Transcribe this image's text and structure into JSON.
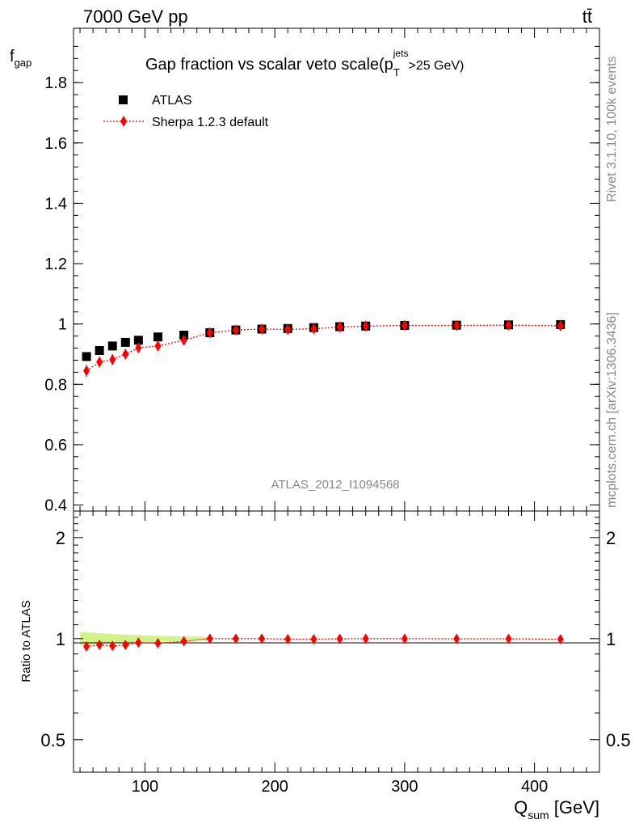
{
  "header": {
    "left_label": "7000 GeV pp",
    "right_label": "tt̄"
  },
  "side_labels": {
    "rivet": "Rivet 3.1.10,  100k events",
    "mcplots": "mcplots.cern.ch [arXiv:1306.3436]"
  },
  "chart_data": [
    {
      "type": "scatter",
      "title": "Gap fraction vs scalar veto scale",
      "title_suffix": {
        "p": "(p",
        "sup": "jets",
        "sub": "T",
        "rest": ">25 GeV)"
      },
      "ylabel": {
        "main": "f",
        "sub": "gap"
      },
      "xlim": [
        45,
        450
      ],
      "ylim": [
        0.38,
        1.98
      ],
      "yticks": [
        0.4,
        0.6,
        0.8,
        1,
        1.2,
        1.4,
        1.6,
        1.8
      ],
      "ytick_labels": [
        "0.4",
        "0.6",
        "0.8",
        "1",
        "1.2",
        "1.4",
        "1.6",
        "1.8"
      ],
      "watermark": "ATLAS_2012_I1094568",
      "legend_position": "top-left",
      "series": [
        {
          "name": "ATLAS",
          "color": "#000000",
          "marker": "square",
          "x": [
            55,
            65,
            75,
            85,
            95,
            110,
            130,
            150,
            170,
            190,
            210,
            230,
            250,
            270,
            300,
            340,
            380,
            420
          ],
          "y": [
            0.892,
            0.912,
            0.927,
            0.939,
            0.946,
            0.957,
            0.963,
            0.971,
            0.98,
            0.983,
            0.985,
            0.988,
            0.991,
            0.993,
            0.995,
            0.996,
            0.997,
            0.998
          ]
        },
        {
          "name": "Sherpa 1.2.3 default",
          "color": "#ff0000",
          "marker": "diamond",
          "x": [
            55,
            65,
            75,
            85,
            95,
            110,
            130,
            150,
            170,
            190,
            210,
            230,
            250,
            270,
            300,
            340,
            380,
            420
          ],
          "y": [
            0.845,
            0.874,
            0.882,
            0.9,
            0.921,
            0.927,
            0.946,
            0.971,
            0.98,
            0.983,
            0.982,
            0.984,
            0.99,
            0.993,
            0.995,
            0.995,
            0.996,
            0.994
          ],
          "yerr": [
            0.02,
            0.018,
            0.018,
            0.017,
            0.016,
            0.015,
            0.012,
            0.008,
            0.007,
            0.006,
            0.006,
            0.006,
            0.005,
            0.005,
            0.004,
            0.004,
            0.004,
            0.004
          ]
        }
      ]
    },
    {
      "type": "scatter",
      "ylabel": "Ratio to ATLAS",
      "xlabel": {
        "main": "Q",
        "sub": "sum",
        "rest": " [GeV]"
      },
      "xlim": [
        45,
        450
      ],
      "xticks": [
        100,
        200,
        300,
        400
      ],
      "xtick_labels": [
        "100",
        "200",
        "300",
        "400"
      ],
      "ylim": [
        0.4,
        2.4
      ],
      "yscale": "log",
      "yticks": [
        0.5,
        1,
        2
      ],
      "ytick_labels": [
        "0.5",
        "1",
        "2"
      ],
      "band": {
        "x_from": 50,
        "x_to": 150,
        "lower": [
          0.955,
          0.962,
          0.968,
          0.972,
          0.976,
          0.98,
          0.985,
          0.988
        ],
        "upper": [
          1.045,
          1.038,
          1.032,
          1.028,
          1.024,
          1.02,
          1.015,
          1.012
        ],
        "color": "#ccf27a"
      },
      "series": [
        {
          "name": "Sherpa 1.2.3 default",
          "color": "#ff0000",
          "marker": "diamond",
          "x": [
            55,
            65,
            75,
            85,
            95,
            110,
            130,
            150,
            170,
            190,
            210,
            230,
            250,
            270,
            300,
            340,
            380,
            420
          ],
          "y": [
            0.948,
            0.958,
            0.951,
            0.958,
            0.973,
            0.969,
            0.982,
            1.0,
            1.0,
            1.0,
            0.997,
            0.996,
            0.999,
            1.0,
            1.0,
            0.999,
            0.999,
            0.996
          ]
        }
      ]
    }
  ]
}
